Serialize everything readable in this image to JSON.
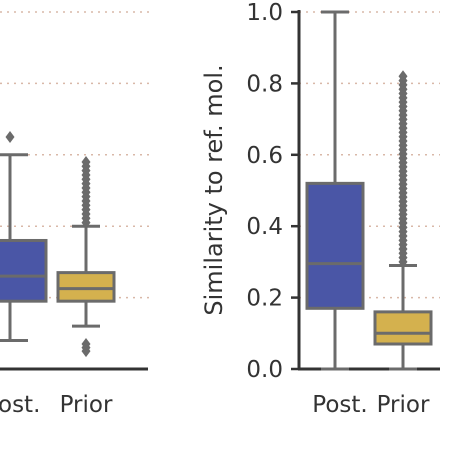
{
  "colors": {
    "posterior": "#4a56a6",
    "prior": "#d4b14e",
    "box_edge": "#6b6b6b",
    "axis": "#333333",
    "grid": "#d9b8a8"
  },
  "chart_data": [
    {
      "type": "box",
      "panel": "left (partially visible)",
      "categories": [
        "Post.",
        "Prior"
      ],
      "category_labels_visible": [
        "ost.",
        "Prior"
      ],
      "grid": true,
      "series": [
        {
          "category": "Post.",
          "color": "posterior",
          "whisker_low": 0.08,
          "q1": 0.19,
          "median": 0.26,
          "q3": 0.36,
          "whisker_high": 0.6,
          "outliers": [
            0.65
          ]
        },
        {
          "category": "Prior",
          "color": "prior",
          "whisker_low": 0.12,
          "q1": 0.19,
          "median": 0.225,
          "q3": 0.27,
          "whisker_high": 0.4,
          "outliers_range": [
            0.41,
            0.58
          ],
          "outliers_low": [
            0.05,
            0.06,
            0.07
          ]
        }
      ]
    },
    {
      "type": "box",
      "panel": "right",
      "categories": [
        "Post.",
        "Prior"
      ],
      "ylabel": "Similarity to ref. mol.",
      "ylim": [
        0.0,
        1.0
      ],
      "yticks": [
        "0.0",
        "0.2",
        "0.4",
        "0.6",
        "0.8",
        "1.0"
      ],
      "grid": true,
      "series": [
        {
          "category": "Post.",
          "color": "posterior",
          "whisker_low": 0.0,
          "q1": 0.17,
          "median": 0.295,
          "q3": 0.52,
          "whisker_high": 1.0,
          "outliers": []
        },
        {
          "category": "Prior",
          "color": "prior",
          "whisker_low": 0.0,
          "q1": 0.07,
          "median": 0.1,
          "q3": 0.16,
          "whisker_high": 0.29,
          "outliers_range": [
            0.3,
            0.82
          ]
        }
      ]
    }
  ]
}
